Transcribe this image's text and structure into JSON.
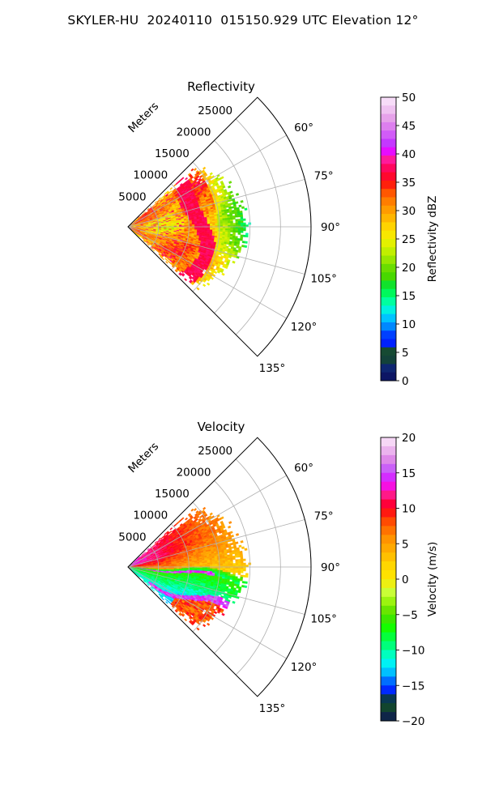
{
  "suptitle": "SKYLER-HU  20240110  015150.929 UTC Elevation 12°",
  "chart_data": [
    {
      "type": "heatmap",
      "projection": "polar-sector",
      "title": "Reflectivity",
      "radial_label": "Meters",
      "r_max": 30000,
      "r_ticks": [
        5000,
        10000,
        15000,
        20000,
        25000
      ],
      "theta_range_deg": [
        45,
        135
      ],
      "theta_ticks": [
        "60°",
        "75°",
        "90°",
        "105°",
        "120°",
        "135°"
      ],
      "grid": true,
      "colorbar": {
        "label": "Reflectivity dBZ",
        "range": [
          0,
          50
        ],
        "ticks": [
          "0",
          "5",
          "10",
          "15",
          "20",
          "25",
          "30",
          "35",
          "40",
          "45",
          "50"
        ]
      },
      "field": "reflectivity",
      "data_extent_m": [
        0,
        19000
      ]
    },
    {
      "type": "heatmap",
      "projection": "polar-sector",
      "title": "Velocity",
      "radial_label": "Meters",
      "r_max": 30000,
      "r_ticks": [
        5000,
        10000,
        15000,
        20000,
        25000
      ],
      "theta_range_deg": [
        45,
        135
      ],
      "theta_ticks": [
        "60°",
        "75°",
        "90°",
        "105°",
        "120°",
        "135°"
      ],
      "grid": true,
      "colorbar": {
        "label": "Velocity (m/s)",
        "range": [
          -20,
          20
        ],
        "ticks": [
          "−20",
          "−15",
          "−10",
          "−5",
          "0",
          "5",
          "10",
          "15",
          "20"
        ]
      },
      "field": "velocity",
      "data_extent_m": [
        0,
        19000
      ]
    }
  ]
}
